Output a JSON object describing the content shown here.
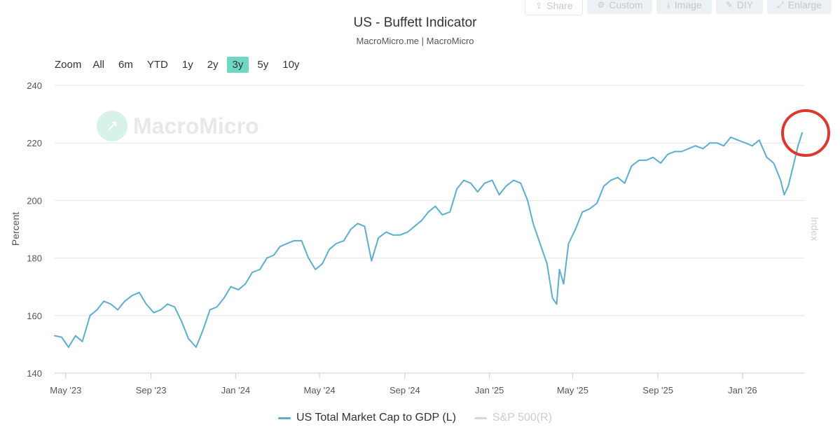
{
  "toolbar": {
    "buttons": [
      {
        "label": "Share",
        "icon": "share-icon"
      },
      {
        "label": "Custom",
        "icon": "gear-icon"
      },
      {
        "label": "Image",
        "icon": "download-icon"
      },
      {
        "label": "DIY",
        "icon": "pencil-icon"
      },
      {
        "label": "Enlarge",
        "icon": "expand-icon"
      }
    ]
  },
  "range_selector": {
    "zoom_label": "Zoom",
    "options": [
      "All",
      "6m",
      "YTD",
      "1y",
      "2y",
      "3y",
      "5y",
      "10y"
    ],
    "active": "3y"
  },
  "watermark": {
    "text": "MacroMicro"
  },
  "colors": {
    "series": "#5aaed0",
    "highlight": "#d83a2e",
    "active_range": "#6fd8c4"
  },
  "chart_data": {
    "type": "line",
    "title": "US - Buffett Indicator",
    "subtitle": "MacroMicro.me | MacroMicro",
    "ylabel": "Percent",
    "y2label": "Index",
    "ylim": [
      140,
      240
    ],
    "yticks": [
      140,
      160,
      180,
      200,
      220,
      240
    ],
    "xlim": [
      "2023-04-15",
      "2026-03-31"
    ],
    "xticks": [
      {
        "label": "May '23",
        "date": "2023-05-01"
      },
      {
        "label": "Sep '23",
        "date": "2023-09-01"
      },
      {
        "label": "Jan '24",
        "date": "2024-01-01"
      },
      {
        "label": "May '24",
        "date": "2024-05-01"
      },
      {
        "label": "Sep '24",
        "date": "2024-09-01"
      },
      {
        "label": "Jan '25",
        "date": "2025-01-01"
      },
      {
        "label": "May '25",
        "date": "2025-05-01"
      },
      {
        "label": "Sep '25",
        "date": "2025-09-01"
      },
      {
        "label": "Jan '26",
        "date": "2026-01-01"
      }
    ],
    "series": [
      {
        "name": "US Total Market Cap to GDP (L)",
        "color": "#5aaed0",
        "visible": true,
        "x": [
          "2023-04-15",
          "2023-04-25",
          "2023-05-05",
          "2023-05-15",
          "2023-05-25",
          "2023-06-05",
          "2023-06-15",
          "2023-06-25",
          "2023-07-05",
          "2023-07-15",
          "2023-07-25",
          "2023-08-05",
          "2023-08-15",
          "2023-08-25",
          "2023-09-05",
          "2023-09-15",
          "2023-09-25",
          "2023-10-05",
          "2023-10-15",
          "2023-10-25",
          "2023-11-05",
          "2023-11-15",
          "2023-11-25",
          "2023-12-05",
          "2023-12-15",
          "2023-12-25",
          "2024-01-05",
          "2024-01-15",
          "2024-01-25",
          "2024-02-05",
          "2024-02-15",
          "2024-02-25",
          "2024-03-05",
          "2024-03-15",
          "2024-03-25",
          "2024-04-05",
          "2024-04-15",
          "2024-04-25",
          "2024-05-05",
          "2024-05-15",
          "2024-05-25",
          "2024-06-05",
          "2024-06-15",
          "2024-06-25",
          "2024-07-05",
          "2024-07-15",
          "2024-07-25",
          "2024-08-05",
          "2024-08-15",
          "2024-08-25",
          "2024-09-05",
          "2024-09-15",
          "2024-09-25",
          "2024-10-05",
          "2024-10-15",
          "2024-10-25",
          "2024-11-05",
          "2024-11-15",
          "2024-11-25",
          "2024-12-05",
          "2024-12-15",
          "2024-12-25",
          "2025-01-05",
          "2025-01-15",
          "2025-01-25",
          "2025-02-05",
          "2025-02-15",
          "2025-02-25",
          "2025-03-05",
          "2025-03-15",
          "2025-03-25",
          "2025-04-02",
          "2025-04-08",
          "2025-04-12",
          "2025-04-18",
          "2025-04-25",
          "2025-05-05",
          "2025-05-15",
          "2025-05-25",
          "2025-06-05",
          "2025-06-15",
          "2025-06-25",
          "2025-07-05",
          "2025-07-15",
          "2025-07-25",
          "2025-08-05",
          "2025-08-15",
          "2025-08-25",
          "2025-09-05",
          "2025-09-15",
          "2025-09-25",
          "2025-10-05",
          "2025-10-15",
          "2025-10-25",
          "2025-11-05",
          "2025-11-15",
          "2025-11-25",
          "2025-12-05",
          "2025-12-15",
          "2025-12-25",
          "2026-01-05",
          "2026-01-15",
          "2026-01-25",
          "2026-02-05",
          "2026-02-15",
          "2026-02-25",
          "2026-03-02",
          "2026-03-08",
          "2026-03-15",
          "2026-03-22",
          "2026-03-28"
        ],
        "values": [
          153,
          152.5,
          149,
          153,
          151,
          160,
          162,
          165,
          164,
          162,
          165,
          167,
          168,
          164,
          161,
          162,
          164,
          163,
          158,
          152,
          149,
          155,
          162,
          163,
          166,
          170,
          169,
          171,
          175,
          176,
          180,
          181,
          184,
          185,
          186,
          186,
          180,
          176,
          178,
          183,
          185,
          186,
          190,
          192,
          191,
          179,
          187,
          189,
          188,
          188,
          189,
          191,
          193,
          196,
          198,
          195,
          196,
          204,
          207,
          206,
          203,
          206,
          207,
          202,
          205,
          207,
          206,
          200,
          192,
          185,
          178,
          166,
          164,
          176,
          171,
          185,
          190,
          196,
          197,
          199,
          205,
          207,
          208,
          206,
          212,
          214,
          214,
          215,
          213,
          216,
          217,
          217,
          218,
          219,
          218,
          220,
          220,
          219,
          222,
          221,
          220,
          219,
          221,
          215,
          213,
          207,
          202,
          205,
          212,
          219,
          223.5
        ]
      },
      {
        "name": "S&P 500(R)",
        "color": "#cccccc",
        "visible": false,
        "x": [],
        "values": []
      }
    ]
  }
}
